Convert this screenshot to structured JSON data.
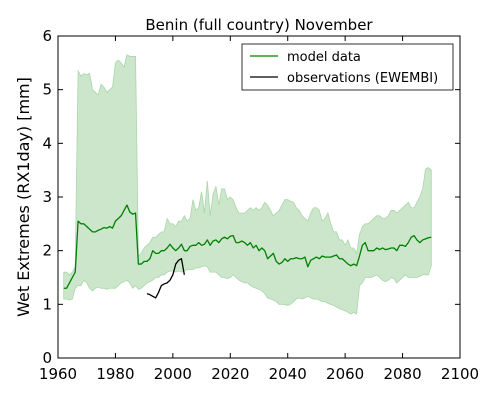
{
  "chart_data": {
    "type": "line",
    "title": "Benin (full country) November",
    "xlabel": "",
    "ylabel": "Wet Extremes (RX1day) [mm]",
    "xlim": [
      1960,
      2100
    ],
    "ylim": [
      0,
      6
    ],
    "xticks": [
      1960,
      1980,
      2000,
      2020,
      2040,
      2060,
      2080,
      2100
    ],
    "yticks": [
      0,
      1,
      2,
      3,
      4,
      5,
      6
    ],
    "grid": false,
    "legend_position": "top-right",
    "colors": {
      "model": "#008000",
      "band": "#a9d6a9",
      "observations": "#000000"
    },
    "series": [
      {
        "name": "model data",
        "x": [
          1962,
          1963,
          1964,
          1965,
          1966,
          1967,
          1968,
          1969,
          1970,
          1971,
          1972,
          1973,
          1974,
          1975,
          1976,
          1977,
          1978,
          1979,
          1980,
          1981,
          1982,
          1983,
          1984,
          1985,
          1986,
          1987,
          1988,
          1989,
          1990,
          1991,
          1992,
          1993,
          1994,
          1995,
          1996,
          1997,
          1998,
          1999,
          2000,
          2001,
          2002,
          2003,
          2004,
          2005,
          2006,
          2007,
          2008,
          2009,
          2010,
          2011,
          2012,
          2013,
          2014,
          2015,
          2016,
          2017,
          2018,
          2019,
          2020,
          2021,
          2022,
          2023,
          2024,
          2025,
          2026,
          2027,
          2028,
          2029,
          2030,
          2031,
          2032,
          2033,
          2034,
          2035,
          2036,
          2037,
          2038,
          2039,
          2040,
          2041,
          2042,
          2043,
          2044,
          2045,
          2046,
          2047,
          2048,
          2049,
          2050,
          2051,
          2052,
          2053,
          2054,
          2055,
          2056,
          2057,
          2058,
          2059,
          2060,
          2061,
          2062,
          2063,
          2064,
          2065,
          2066,
          2067,
          2068,
          2069,
          2070,
          2071,
          2072,
          2073,
          2074,
          2075,
          2076,
          2077,
          2078,
          2079,
          2080,
          2081,
          2082,
          2083,
          2084,
          2085,
          2086,
          2087,
          2088,
          2089,
          2090
        ],
        "mean": [
          1.3,
          1.3,
          1.4,
          1.5,
          1.6,
          2.55,
          2.5,
          2.5,
          2.45,
          2.4,
          2.35,
          2.35,
          2.38,
          2.4,
          2.43,
          2.42,
          2.45,
          2.42,
          2.55,
          2.6,
          2.65,
          2.75,
          2.85,
          2.72,
          2.68,
          2.7,
          1.75,
          1.75,
          1.8,
          1.8,
          1.85,
          2.0,
          1.95,
          1.95,
          2.0,
          2.0,
          2.05,
          2.12,
          2.05,
          2.0,
          2.05,
          2.12,
          2.0,
          2.0,
          2.08,
          2.1,
          2.1,
          2.15,
          2.1,
          2.12,
          2.2,
          2.1,
          2.18,
          2.2,
          2.15,
          2.22,
          2.25,
          2.22,
          2.27,
          2.28,
          2.15,
          2.15,
          2.18,
          2.15,
          2.1,
          2.15,
          2.05,
          2.1,
          2.0,
          2.05,
          2.0,
          1.85,
          1.9,
          1.95,
          1.8,
          1.75,
          1.78,
          1.85,
          1.8,
          1.85,
          1.85,
          1.87,
          1.85,
          1.85,
          1.88,
          1.7,
          1.82,
          1.85,
          1.88,
          1.85,
          1.9,
          1.88,
          1.88,
          1.88,
          1.9,
          1.92,
          1.85,
          1.85,
          1.8,
          1.75,
          1.72,
          1.75,
          1.72,
          1.9,
          2.1,
          2.15,
          2.0,
          2.0,
          2.0,
          2.05,
          2.02,
          2.05,
          2.02,
          2.03,
          2.05,
          2.05,
          2.0,
          2.1,
          2.1,
          2.08,
          2.15,
          2.25,
          2.28,
          2.2,
          2.15,
          2.2,
          2.22,
          2.24,
          2.25
        ],
        "lower": [
          1.1,
          1.1,
          1.08,
          1.1,
          1.3,
          1.35,
          1.35,
          1.45,
          1.4,
          1.3,
          1.25,
          1.3,
          1.32,
          1.3,
          1.3,
          1.28,
          1.3,
          1.3,
          1.3,
          1.35,
          1.4,
          1.42,
          1.45,
          1.4,
          1.3,
          1.35,
          1.28,
          1.3,
          1.35,
          1.4,
          1.42,
          1.45,
          1.5,
          1.5,
          1.55,
          1.55,
          1.6,
          1.62,
          1.62,
          1.6,
          1.62,
          1.6,
          1.62,
          1.65,
          1.65,
          1.65,
          1.68,
          1.68,
          1.7,
          1.72,
          1.7,
          1.6,
          1.6,
          1.6,
          1.55,
          1.5,
          1.5,
          1.48,
          1.5,
          1.55,
          1.5,
          1.45,
          1.42,
          1.4,
          1.4,
          1.35,
          1.32,
          1.3,
          1.28,
          1.25,
          1.2,
          1.12,
          1.1,
          1.08,
          1.05,
          1.0,
          1.0,
          1.0,
          0.98,
          1.0,
          1.05,
          1.1,
          1.12,
          1.1,
          1.12,
          1.15,
          1.12,
          1.1,
          1.1,
          1.08,
          1.05,
          1.05,
          1.02,
          1.0,
          0.98,
          0.95,
          0.92,
          0.9,
          0.88,
          0.85,
          0.82,
          0.85,
          0.82,
          1.35,
          1.4,
          1.5,
          1.5,
          1.5,
          1.52,
          1.55,
          1.5,
          1.45,
          1.42,
          1.45,
          1.5,
          1.48,
          1.4,
          1.45,
          1.5,
          1.55,
          1.5,
          1.5,
          1.5,
          1.5,
          1.52,
          1.55,
          1.55,
          1.55,
          1.72
        ],
        "upper": [
          1.6,
          1.6,
          1.55,
          1.6,
          1.7,
          5.35,
          5.25,
          5.3,
          5.28,
          5.3,
          5.0,
          4.95,
          4.9,
          5.1,
          5.05,
          4.95,
          5.0,
          5.05,
          5.5,
          5.55,
          5.5,
          5.42,
          5.65,
          5.62,
          5.62,
          5.62,
          1.9,
          1.95,
          2.05,
          2.1,
          2.15,
          2.25,
          2.25,
          2.3,
          2.35,
          2.35,
          2.6,
          2.5,
          2.5,
          2.45,
          2.55,
          2.55,
          2.65,
          2.55,
          2.6,
          2.95,
          2.75,
          2.8,
          3.1,
          2.7,
          3.3,
          2.65,
          3.05,
          3.2,
          2.85,
          3.15,
          3.15,
          2.95,
          3.0,
          2.95,
          2.8,
          2.7,
          2.7,
          2.7,
          2.75,
          2.8,
          2.75,
          2.8,
          2.75,
          2.8,
          2.9,
          2.85,
          2.75,
          2.65,
          2.7,
          2.75,
          2.85,
          2.95,
          2.95,
          2.92,
          2.9,
          2.8,
          2.75,
          2.65,
          2.6,
          2.55,
          2.7,
          2.8,
          2.8,
          2.75,
          2.55,
          2.6,
          2.7,
          2.5,
          2.35,
          2.35,
          2.2,
          2.2,
          2.1,
          2.2,
          2.05,
          2.05,
          1.95,
          2.3,
          2.45,
          2.5,
          2.5,
          2.55,
          2.6,
          2.65,
          2.65,
          2.6,
          2.6,
          2.65,
          2.75,
          2.75,
          2.7,
          2.75,
          2.8,
          2.85,
          2.9,
          2.8,
          2.8,
          2.9,
          3.0,
          3.15,
          3.52,
          3.55,
          3.5
        ]
      },
      {
        "name": "observations (EWEMBI)",
        "x": [
          1991,
          1992,
          1993,
          1994,
          1995,
          1996,
          1997,
          1998,
          1999,
          2000,
          2001,
          2002,
          2003,
          2004
        ],
        "values": [
          1.2,
          1.18,
          1.15,
          1.12,
          1.22,
          1.35,
          1.38,
          1.4,
          1.45,
          1.55,
          1.75,
          1.82,
          1.85,
          1.55
        ]
      }
    ]
  }
}
